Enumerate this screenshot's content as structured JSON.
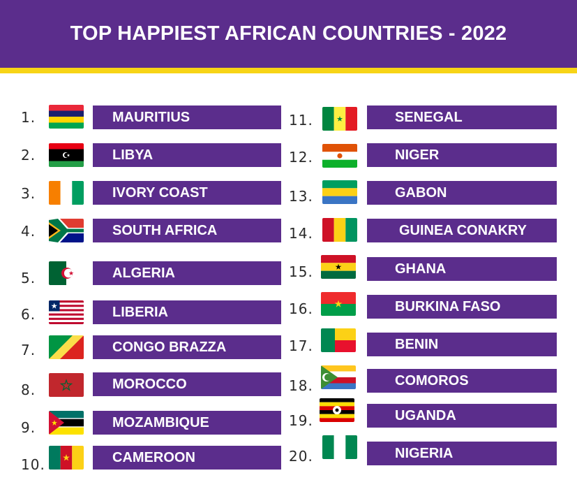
{
  "header": {
    "title": "TOP HAPPIEST AFRICAN COUNTRIES - 2022"
  },
  "colors": {
    "header_bg": "#5b2d8c",
    "accent_bar": "#f7d417",
    "name_box_bg": "#5b2d8c",
    "name_text": "#ffffff"
  },
  "countries": [
    {
      "rank": "1.",
      "name": "MAURITIUS",
      "flag": "mauritius-flag-icon"
    },
    {
      "rank": "2.",
      "name": "LIBYA",
      "flag": "libya-flag-icon"
    },
    {
      "rank": "3.",
      "name": "IVORY COAST",
      "flag": "ivory-coast-flag-icon"
    },
    {
      "rank": "4.",
      "name": "SOUTH AFRICA",
      "flag": "south-africa-flag-icon"
    },
    {
      "rank": "5.",
      "name": "ALGERIA",
      "flag": "algeria-flag-icon"
    },
    {
      "rank": "6.",
      "name": "LIBERIA",
      "flag": "liberia-flag-icon"
    },
    {
      "rank": "7.",
      "name": "CONGO BRAZZA",
      "flag": "congo-flag-icon"
    },
    {
      "rank": "8.",
      "name": "MOROCCO",
      "flag": "morocco-flag-icon"
    },
    {
      "rank": "9.",
      "name": "MOZAMBIQUE",
      "flag": "mozambique-flag-icon"
    },
    {
      "rank": "10.",
      "name": "CAMEROON",
      "flag": "cameroon-flag-icon"
    },
    {
      "rank": "11.",
      "name": "SENEGAL",
      "flag": "senegal-flag-icon"
    },
    {
      "rank": "12.",
      "name": "NIGER",
      "flag": "niger-flag-icon"
    },
    {
      "rank": "13.",
      "name": "GABON",
      "flag": "gabon-flag-icon"
    },
    {
      "rank": "14.",
      "name": "GUINEA CONAKRY",
      "flag": "guinea-flag-icon"
    },
    {
      "rank": "15.",
      "name": "GHANA",
      "flag": "ghana-flag-icon"
    },
    {
      "rank": "16.",
      "name": "BURKINA FASO",
      "flag": "burkina-faso-flag-icon"
    },
    {
      "rank": "17.",
      "name": "BENIN",
      "flag": "benin-flag-icon"
    },
    {
      "rank": "18.",
      "name": "COMOROS",
      "flag": "comoros-flag-icon"
    },
    {
      "rank": "19.",
      "name": "UGANDA",
      "flag": "uganda-flag-icon"
    },
    {
      "rank": "20.",
      "name": "NIGERIA",
      "flag": "nigeria-flag-icon"
    }
  ]
}
